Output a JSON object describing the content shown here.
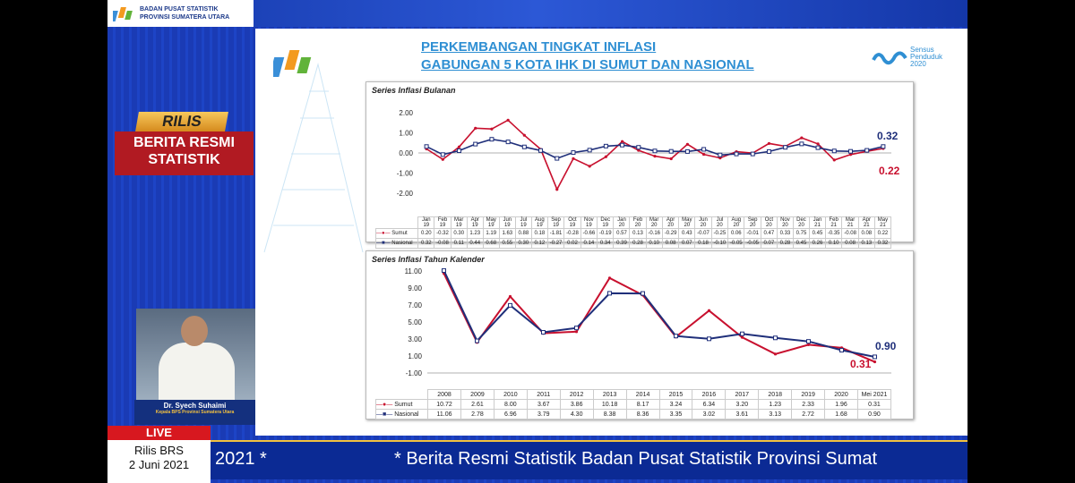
{
  "header": {
    "org_line1": "BADAN PUSAT STATISTIK",
    "org_line2": "PROVINSI SUMATERA UTARA"
  },
  "slide": {
    "title_line1": "PERKEMBANGAN TINGKAT INFLASI",
    "title_line2": "GABUNGAN 5 KOTA IHK DI SUMUT DAN NASIONAL",
    "census_logo": [
      "Sensus",
      "Penduduk",
      "2020"
    ]
  },
  "colors": {
    "sumut": "#c8102e",
    "nasional": "#1f2f7a"
  },
  "chart_data": [
    {
      "type": "line",
      "title": "Series Inflasi Bulanan",
      "categories": [
        "Jan-19",
        "Feb-19",
        "Mar-19",
        "Apr-19",
        "May-19",
        "Jun-19",
        "Jul-19",
        "Aug-19",
        "Sep-19",
        "Oct-19",
        "Nov-19",
        "Dec-19",
        "Jan-20",
        "Feb-20",
        "Mar-20",
        "Apr-20",
        "May-20",
        "Jun-20",
        "Jul-20",
        "Aug-20",
        "Sep-20",
        "Oct-20",
        "Nov-20",
        "Dec-20",
        "Jan-21",
        "Feb-21",
        "Mar-21",
        "Apr-21",
        "May-21"
      ],
      "series": [
        {
          "name": "Sumut",
          "values": [
            0.2,
            -0.32,
            0.3,
            1.23,
            1.19,
            1.63,
            0.88,
            0.18,
            -1.81,
            -0.28,
            -0.66,
            -0.19,
            0.57,
            0.13,
            -0.16,
            -0.29,
            0.43,
            -0.07,
            -0.25,
            0.06,
            -0.01,
            0.47,
            0.33,
            0.75,
            0.45,
            -0.35,
            -0.08,
            0.08,
            0.22
          ]
        },
        {
          "name": "Nasional",
          "values": [
            0.32,
            -0.08,
            0.11,
            0.44,
            0.68,
            0.55,
            0.3,
            0.12,
            -0.27,
            0.02,
            0.14,
            0.34,
            0.39,
            0.28,
            0.1,
            0.08,
            0.07,
            0.18,
            -0.1,
            -0.05,
            -0.05,
            0.07,
            0.28,
            0.45,
            0.26,
            0.1,
            0.08,
            0.13,
            0.32
          ]
        }
      ],
      "y_ticks": [
        "2.00",
        "1.00",
        "0.00",
        "-1.00",
        "-2.00"
      ],
      "ylim": [
        -2,
        2
      ],
      "annotations": [
        "0.32",
        "0.22"
      ]
    },
    {
      "type": "line",
      "title": "Series Inflasi Tahun Kalender",
      "categories": [
        "2008",
        "2009",
        "2010",
        "2011",
        "2012",
        "2013",
        "2014",
        "2015",
        "2016",
        "2017",
        "2018",
        "2019",
        "2020",
        "Mei 2021"
      ],
      "series": [
        {
          "name": "Sumut",
          "values": [
            10.72,
            2.61,
            8.0,
            3.67,
            3.86,
            10.18,
            8.17,
            3.24,
            6.34,
            3.2,
            1.23,
            2.33,
            1.96,
            0.31
          ]
        },
        {
          "name": "Nasional",
          "values": [
            11.06,
            2.78,
            6.96,
            3.79,
            4.3,
            8.38,
            8.36,
            3.35,
            3.02,
            3.61,
            3.13,
            2.72,
            1.68,
            0.9
          ]
        }
      ],
      "y_ticks": [
        "11.00",
        "9.00",
        "7.00",
        "5.00",
        "3.00",
        "1.00",
        "-1.00"
      ],
      "ylim": [
        -1,
        11
      ],
      "annotations": [
        "0.90",
        "0.31"
      ]
    }
  ],
  "overlay": {
    "rilis": "RILIS",
    "berita": "BERITA RESMI",
    "statistik": "STATISTIK",
    "speaker_name": "Dr. Syech Suhaimi",
    "speaker_role": "Kepala BPS Provinsi Sumatera Utara",
    "live": "LIVE",
    "live_line1": "Rilis BRS",
    "live_line2": "2 Juni 2021",
    "ticker_left": "2021 *",
    "ticker_right": "* Berita Resmi Statistik Badan Pusat Statistik Provinsi Sumat"
  }
}
